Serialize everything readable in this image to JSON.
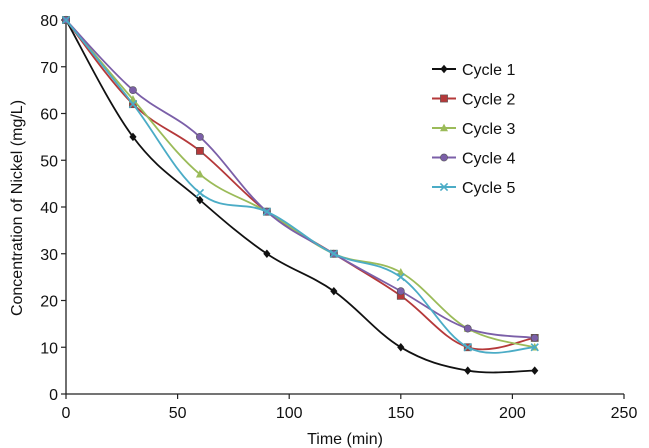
{
  "chart_data": {
    "type": "line",
    "title": "",
    "xlabel": "Time (min)",
    "ylabel": "Concentration of Nickel (mg/L)",
    "xlim": [
      0,
      250
    ],
    "ylim": [
      0,
      80
    ],
    "xticks": [
      0,
      50,
      100,
      150,
      200,
      250
    ],
    "yticks": [
      0,
      10,
      20,
      30,
      40,
      50,
      60,
      70,
      80
    ],
    "x": [
      0,
      30,
      60,
      90,
      120,
      150,
      180,
      210
    ],
    "grid": false,
    "legend_position": "top-right",
    "series": [
      {
        "name": "Cycle 1",
        "color": "#111111",
        "marker": "diamond",
        "values": [
          80,
          55,
          41.5,
          30,
          22,
          10,
          5,
          5
        ]
      },
      {
        "name": "Cycle 2",
        "color": "#b5393a",
        "marker": "square",
        "values": [
          80,
          62,
          52,
          39,
          30,
          21,
          10,
          12
        ]
      },
      {
        "name": "Cycle 3",
        "color": "#9bbb59",
        "marker": "triangle",
        "values": [
          80,
          63,
          47,
          39,
          30,
          26,
          14,
          10
        ]
      },
      {
        "name": "Cycle 4",
        "color": "#7b5fa8",
        "marker": "circle",
        "values": [
          80,
          65,
          55,
          39,
          30,
          22,
          14,
          12
        ]
      },
      {
        "name": "Cycle 5",
        "color": "#4bacc6",
        "marker": "x",
        "values": [
          80,
          62,
          43,
          39,
          30,
          25,
          10,
          10
        ]
      }
    ]
  }
}
